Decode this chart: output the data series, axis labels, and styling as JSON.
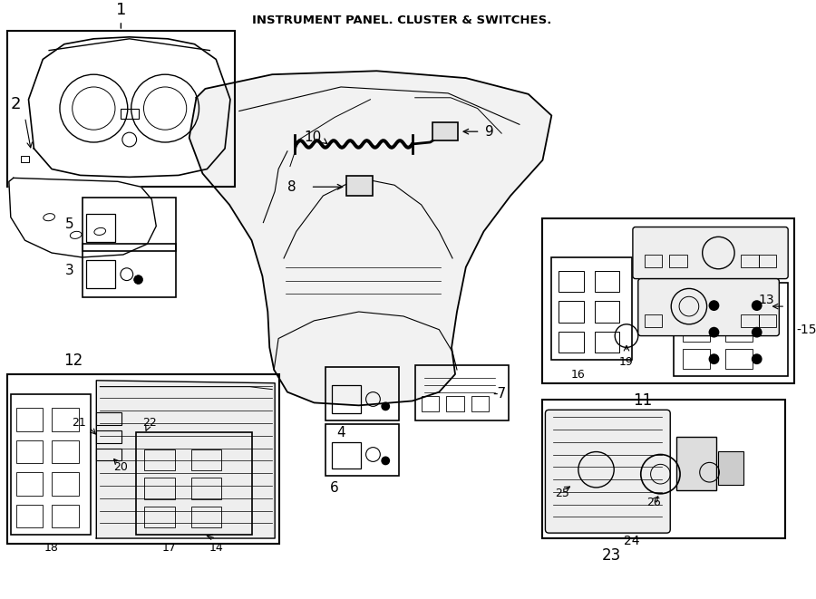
{
  "title": "INSTRUMENT PANEL. CLUSTER & SWITCHES.",
  "bg_color": "#ffffff",
  "line_color": "#000000",
  "fig_width": 9.0,
  "fig_height": 6.61
}
